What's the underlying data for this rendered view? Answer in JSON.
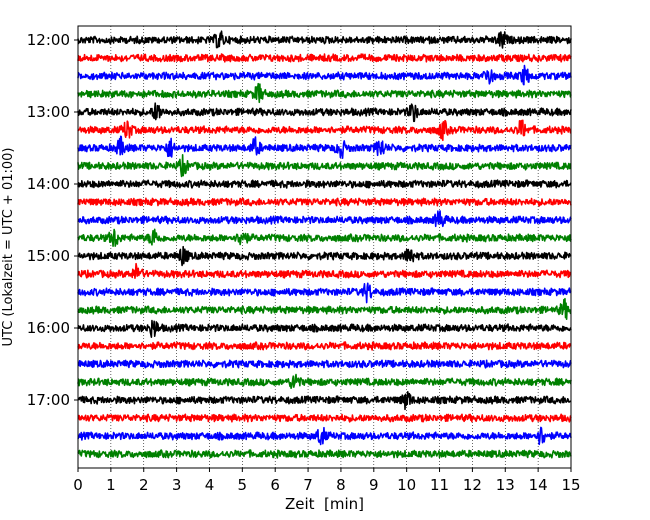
{
  "chart_data": {
    "type": "line",
    "title": "",
    "xlabel": "Zeit  [min]",
    "ylabel": "UTC (Lokalzeit = UTC + 01:00)",
    "xlim": [
      0,
      15
    ],
    "x_ticks": [
      0,
      1,
      2,
      3,
      4,
      5,
      6,
      7,
      8,
      9,
      10,
      11,
      12,
      13,
      14,
      15
    ],
    "y_ticks": [
      "12:00",
      "13:00",
      "14:00",
      "15:00",
      "16:00",
      "17:00"
    ],
    "grid": "vertical dotted at each minute",
    "legend": "none",
    "series_colors": [
      "#000000",
      "#ff0000",
      "#0000ff",
      "#008000"
    ],
    "trace_interval_minutes": 15,
    "first_trace": "12:00",
    "trace_count": 24,
    "series": [
      {
        "start": "12:00",
        "color": "#000000",
        "events_min": [
          4.3,
          12.9
        ]
      },
      {
        "start": "12:15",
        "color": "#ff0000",
        "events_min": []
      },
      {
        "start": "12:30",
        "color": "#0000ff",
        "events_min": [
          12.5,
          13.6
        ]
      },
      {
        "start": "12:45",
        "color": "#008000",
        "events_min": [
          5.5
        ]
      },
      {
        "start": "13:00",
        "color": "#000000",
        "events_min": [
          2.4,
          10.2
        ]
      },
      {
        "start": "13:15",
        "color": "#ff0000",
        "events_min": [
          1.5,
          11.1,
          13.5
        ]
      },
      {
        "start": "13:30",
        "color": "#0000ff",
        "events_min": [
          1.3,
          2.8,
          5.4,
          8.0,
          9.2
        ]
      },
      {
        "start": "13:45",
        "color": "#008000",
        "events_min": [
          3.2
        ]
      },
      {
        "start": "14:00",
        "color": "#000000",
        "events_min": []
      },
      {
        "start": "14:15",
        "color": "#ff0000",
        "events_min": []
      },
      {
        "start": "14:30",
        "color": "#0000ff",
        "events_min": [
          11.0
        ]
      },
      {
        "start": "14:45",
        "color": "#008000",
        "events_min": [
          1.1,
          2.3,
          5.0
        ]
      },
      {
        "start": "15:00",
        "color": "#000000",
        "events_min": [
          3.2,
          10.1
        ]
      },
      {
        "start": "15:15",
        "color": "#ff0000",
        "events_min": [
          1.8
        ]
      },
      {
        "start": "15:30",
        "color": "#0000ff",
        "events_min": [
          8.8
        ]
      },
      {
        "start": "15:45",
        "color": "#008000",
        "events_min": [
          14.8
        ]
      },
      {
        "start": "16:00",
        "color": "#000000",
        "events_min": [
          2.3
        ]
      },
      {
        "start": "16:15",
        "color": "#ff0000",
        "events_min": []
      },
      {
        "start": "16:30",
        "color": "#0000ff",
        "events_min": []
      },
      {
        "start": "16:45",
        "color": "#008000",
        "events_min": [
          6.6
        ]
      },
      {
        "start": "17:00",
        "color": "#000000",
        "events_min": [
          10.0
        ]
      },
      {
        "start": "17:15",
        "color": "#ff0000",
        "events_min": []
      },
      {
        "start": "17:30",
        "color": "#0000ff",
        "events_min": [
          7.4,
          14.1
        ]
      },
      {
        "start": "17:45",
        "color": "#008000",
        "events_min": []
      }
    ]
  }
}
